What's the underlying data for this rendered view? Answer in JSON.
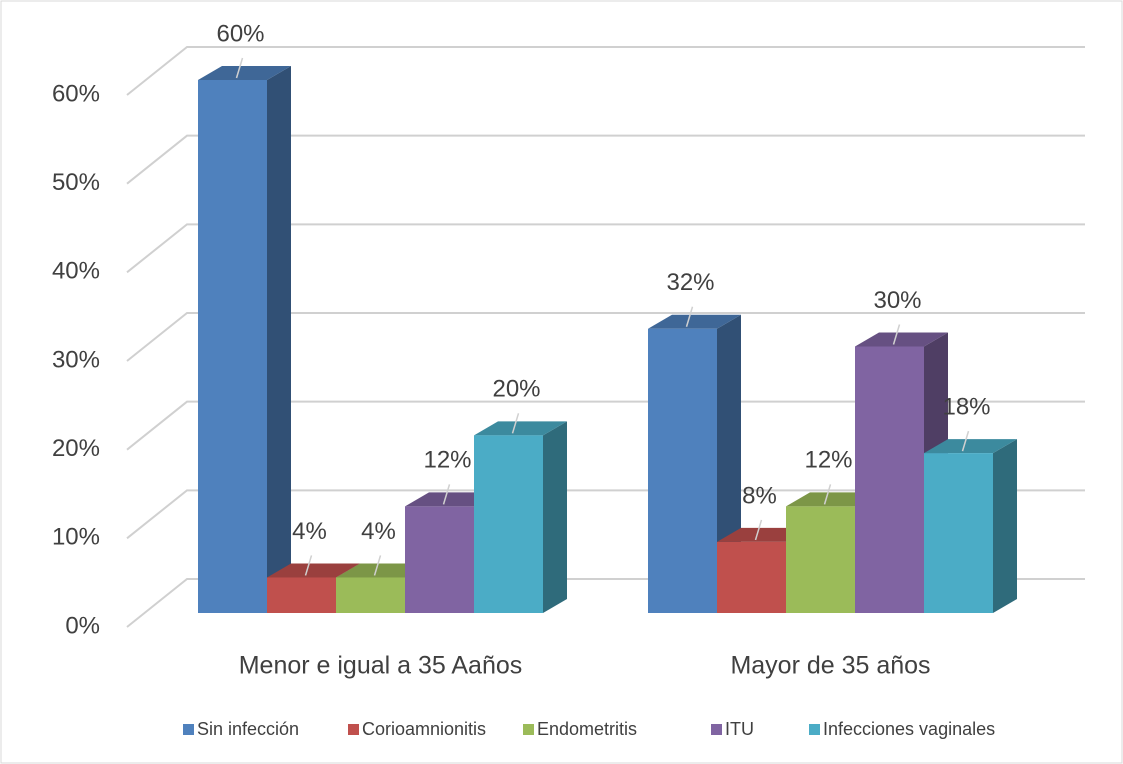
{
  "chart_data": {
    "type": "bar3d",
    "categories": [
      "Menor e igual a 35 Aaños",
      "Mayor de 35 años"
    ],
    "series": [
      {
        "name": "Sin infección",
        "color": "#4f81bd",
        "values": [
          60,
          32
        ],
        "value_labels": [
          "60%",
          "32%"
        ]
      },
      {
        "name": "Corioamnionitis",
        "color": "#c0504d",
        "values": [
          4,
          8
        ],
        "value_labels": [
          "4%",
          "8%"
        ]
      },
      {
        "name": "Endometritis",
        "color": "#9bbb59",
        "values": [
          4,
          12
        ],
        "value_labels": [
          "4%",
          "12%"
        ]
      },
      {
        "name": "ITU",
        "color": "#8064a2",
        "values": [
          12,
          30
        ],
        "value_labels": [
          "12%",
          "30%"
        ]
      },
      {
        "name": "Infecciones vaginales",
        "color": "#4bacc6",
        "values": [
          20,
          18
        ],
        "value_labels": [
          "20%",
          "18%"
        ]
      }
    ],
    "ylim": [
      0,
      60
    ],
    "yticks": [
      {
        "value": 0,
        "label": "0%"
      },
      {
        "value": 10,
        "label": "10%"
      },
      {
        "value": 20,
        "label": "20%"
      },
      {
        "value": 30,
        "label": "30%"
      },
      {
        "value": 40,
        "label": "40%"
      },
      {
        "value": 50,
        "label": "50%"
      },
      {
        "value": 60,
        "label": "60%"
      }
    ],
    "grid": true,
    "legend": "bottom"
  }
}
